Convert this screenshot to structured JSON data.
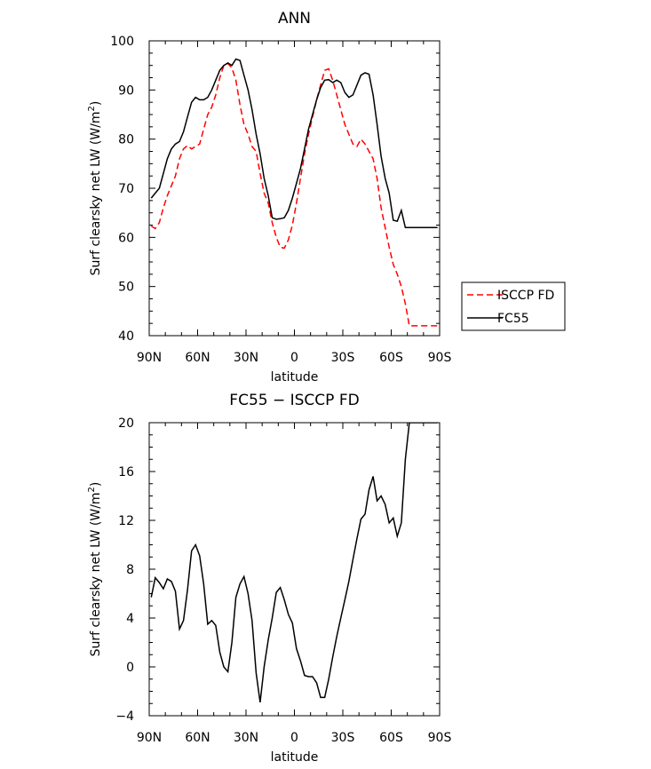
{
  "chart_data": [
    {
      "type": "line",
      "title": "ANN",
      "xlabel": "latitude",
      "ylabel": "Surf clearsky net LW (W/m²)",
      "ylabel_parts": {
        "main": "Surf clearsky net LW (W/m",
        "sup": "2",
        "end": ")"
      },
      "xlim": [
        90,
        -90
      ],
      "ylim": [
        40,
        100
      ],
      "x_ticks": [
        90,
        60,
        30,
        0,
        -30,
        -60,
        -90
      ],
      "x_tick_labels": [
        "90N",
        "60N",
        "30N",
        "0",
        "30S",
        "60S",
        "90S"
      ],
      "y_ticks": [
        40,
        50,
        60,
        70,
        80,
        90,
        100
      ],
      "y_tick_labels": [
        "40",
        "50",
        "60",
        "70",
        "80",
        "90",
        "100"
      ],
      "grid": false,
      "legend": "right",
      "series": [
        {
          "name": "ISCCP FD",
          "color": "#ff0000",
          "dash": "dashed",
          "x": [
            88.75,
            86.25,
            83.75,
            81.25,
            78.75,
            76.25,
            73.75,
            71.25,
            68.75,
            66.25,
            63.75,
            61.25,
            58.75,
            56.25,
            53.75,
            51.25,
            48.75,
            46.25,
            43.75,
            41.25,
            38.75,
            36.25,
            33.75,
            31.25,
            28.75,
            26.25,
            23.75,
            21.25,
            18.75,
            16.25,
            13.75,
            11.25,
            8.75,
            6.25,
            3.75,
            1.25,
            -1.25,
            -3.75,
            -6.25,
            -8.75,
            -11.25,
            -13.75,
            -16.25,
            -18.75,
            -21.25,
            -23.75,
            -26.25,
            -28.75,
            -31.25,
            -33.75,
            -36.25,
            -38.75,
            -41.25,
            -43.75,
            -46.25,
            -48.75,
            -51.25,
            -53.75,
            -56.25,
            -58.75,
            -61.25,
            -63.75,
            -66.25,
            -68.75,
            -71.25,
            -73.75,
            -76.25,
            -78.75,
            -81.25,
            -83.75,
            -86.25,
            -88.75
          ],
          "y": [
            62.3,
            61.8,
            63.0,
            66.0,
            68.5,
            70.5,
            72.5,
            76.0,
            78.0,
            78.7,
            78.0,
            78.5,
            79.0,
            82.0,
            85.0,
            86.5,
            89.0,
            92.5,
            95.0,
            95.4,
            94.5,
            92.0,
            87.0,
            83.0,
            81.0,
            78.5,
            77.5,
            73.0,
            69.0,
            67.0,
            63.0,
            60.0,
            58.0,
            57.8,
            59.5,
            62.5,
            67.0,
            72.0,
            77.0,
            81.0,
            84.5,
            88.0,
            91.0,
            94.0,
            94.3,
            92.0,
            89.0,
            86.0,
            83.0,
            81.0,
            79.0,
            78.5,
            80.0,
            79.0,
            77.5,
            76.0,
            72.0,
            66.0,
            62.0,
            58.0,
            54.5,
            52.5,
            50.0,
            46.5,
            42.0,
            42.0,
            42.0,
            42.0,
            42.0,
            42.0,
            42.0,
            42.0
          ]
        },
        {
          "name": "FC55",
          "color": "#000000",
          "dash": "solid",
          "x": [
            88.75,
            86.25,
            83.75,
            81.25,
            78.75,
            76.25,
            73.75,
            71.25,
            68.75,
            66.25,
            63.75,
            61.25,
            58.75,
            56.25,
            53.75,
            51.25,
            48.75,
            46.25,
            43.75,
            41.25,
            38.75,
            36.25,
            33.75,
            31.25,
            28.75,
            26.25,
            23.75,
            21.25,
            18.75,
            16.25,
            13.75,
            11.25,
            8.75,
            6.25,
            3.75,
            1.25,
            -1.25,
            -3.75,
            -6.25,
            -8.75,
            -11.25,
            -13.75,
            -16.25,
            -18.75,
            -21.25,
            -23.75,
            -26.25,
            -28.75,
            -31.25,
            -33.75,
            -36.25,
            -38.75,
            -41.25,
            -43.75,
            -46.25,
            -48.75,
            -51.25,
            -53.75,
            -56.25,
            -58.75,
            -61.25,
            -63.75,
            -66.25,
            -68.75,
            -71.25,
            -73.75,
            -76.25,
            -78.75,
            -81.25,
            -83.75,
            -86.25,
            -88.75
          ],
          "y": [
            68.0,
            69.0,
            70.0,
            73.0,
            76.0,
            78.0,
            79.0,
            79.5,
            81.5,
            84.5,
            87.5,
            88.5,
            88.0,
            88.0,
            88.5,
            90.0,
            92.0,
            94.0,
            95.0,
            95.5,
            95.0,
            96.3,
            96.0,
            93.0,
            90.0,
            86.0,
            81.0,
            77.0,
            72.0,
            68.5,
            64.0,
            63.7,
            63.8,
            64.0,
            65.5,
            68.0,
            71.0,
            74.0,
            78.0,
            82.0,
            85.0,
            88.0,
            90.5,
            92.0,
            92.1,
            91.5,
            92.0,
            91.5,
            89.5,
            88.5,
            89.0,
            91.0,
            93.0,
            93.5,
            93.2,
            89.0,
            83.0,
            76.5,
            72.0,
            69.0,
            63.5,
            63.3,
            65.5,
            62.0,
            62.0,
            62.0,
            62.0,
            62.0,
            62.0,
            62.0,
            62.0,
            62.0
          ]
        }
      ]
    },
    {
      "type": "line",
      "title": "FC55 − ISCCP FD",
      "xlabel": "latitude",
      "ylabel": "Surf clearsky net LW (W/m²)",
      "ylabel_parts": {
        "main": "Surf clearsky net LW (W/m",
        "sup": "2",
        "end": ")"
      },
      "xlim": [
        90,
        -90
      ],
      "ylim": [
        -4,
        20
      ],
      "x_ticks": [
        90,
        60,
        30,
        0,
        -30,
        -60,
        -90
      ],
      "x_tick_labels": [
        "90N",
        "60N",
        "30N",
        "0",
        "30S",
        "60S",
        "90S"
      ],
      "y_ticks": [
        -4,
        0,
        4,
        8,
        12,
        16,
        20
      ],
      "y_tick_labels": [
        "−4",
        "0",
        "4",
        "8",
        "12",
        "16",
        "20"
      ],
      "grid": false,
      "legend": "none",
      "series": [
        {
          "color": "#000000",
          "dash": "solid",
          "x": [
            88.75,
            86.25,
            83.75,
            81.25,
            78.75,
            76.25,
            73.75,
            71.25,
            68.75,
            66.25,
            63.75,
            61.25,
            58.75,
            56.25,
            53.75,
            51.25,
            48.75,
            46.25,
            43.75,
            41.25,
            38.75,
            36.25,
            33.75,
            31.25,
            28.75,
            26.25,
            23.75,
            21.25,
            18.75,
            16.25,
            13.75,
            11.25,
            8.75,
            6.25,
            3.75,
            1.25,
            -1.25,
            -3.75,
            -6.25,
            -8.75,
            -11.25,
            -13.75,
            -16.25,
            -18.75,
            -21.25,
            -23.75,
            -26.25,
            -28.75,
            -31.25,
            -33.75,
            -36.25,
            -38.75,
            -41.25,
            -43.75,
            -46.25,
            -48.75,
            -51.25,
            -53.75,
            -56.25,
            -58.75,
            -61.25,
            -63.75,
            -66.25,
            -68.75,
            -71.25,
            -73.75,
            -76.25,
            -78.75,
            -81.25,
            -83.75,
            -86.25,
            -88.75
          ],
          "y": [
            5.7,
            7.3,
            6.9,
            6.4,
            7.2,
            7.0,
            6.2,
            3.1,
            3.8,
            6.3,
            9.5,
            10.0,
            9.1,
            6.8,
            3.5,
            3.8,
            3.4,
            1.2,
            0.0,
            -0.4,
            2.0,
            5.7,
            6.8,
            7.4,
            6.0,
            3.8,
            -0.5,
            -2.9,
            0.0,
            2.2,
            4.0,
            6.1,
            6.5,
            5.5,
            4.3,
            3.6,
            1.5,
            0.5,
            -0.7,
            -0.8,
            -0.8,
            -1.3,
            -2.5,
            -2.5,
            -1.0,
            0.8,
            2.5,
            4.0,
            5.5,
            7.0,
            8.8,
            10.5,
            12.1,
            12.5,
            14.5,
            15.6,
            13.6,
            14.0,
            13.3,
            11.8,
            12.2,
            10.7,
            11.8,
            17.0,
            20.0,
            20.0,
            20.0,
            20.0,
            20.0,
            20.0,
            20.0,
            20.0
          ]
        }
      ]
    }
  ]
}
